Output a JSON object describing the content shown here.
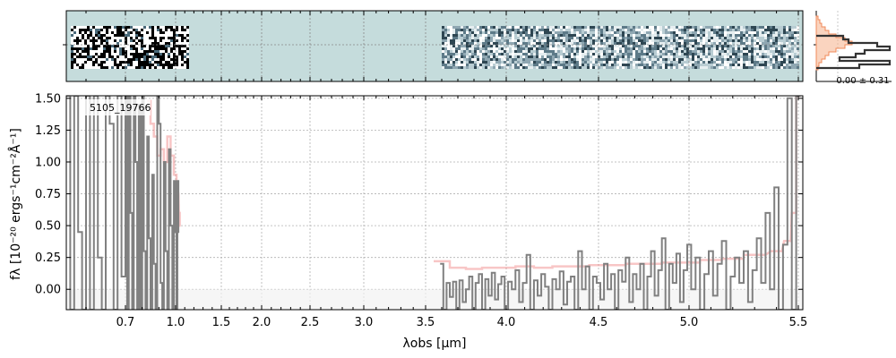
{
  "chart_data": [
    {
      "panel": "spectrum-2d",
      "type": "heatmap",
      "background_color": "#c5dcdc",
      "segments": [
        {
          "x_range": [
            0.55,
            1.05
          ],
          "style": "high-contrast-black-white"
        },
        {
          "x_range": [
            3.6,
            5.5
          ],
          "style": "low-contrast-blue-grey"
        }
      ],
      "grid": true
    },
    {
      "panel": "spectrum-1d",
      "type": "line",
      "title": "",
      "object_label": "5105_19766",
      "xlabel": "λobs [μm]",
      "ylabel": "fλ [10⁻²⁰ ergs⁻¹cm⁻²Å⁻¹]",
      "xlim": [
        0.55,
        5.52
      ],
      "ylim": [
        -0.16,
        1.52
      ],
      "x_ticks": [
        "0.7",
        "1.0",
        "1.5",
        "2.0",
        "2.5",
        "3.0",
        "3.5",
        "4.0",
        "4.5",
        "5.0",
        "5.5"
      ],
      "y_ticks": [
        "0.00",
        "0.25",
        "0.50",
        "0.75",
        "1.00",
        "1.25",
        "1.50"
      ],
      "x_tick_values": [
        0.7,
        1.0,
        1.5,
        2.0,
        2.5,
        3.0,
        3.5,
        4.0,
        4.5,
        5.0,
        5.5
      ],
      "y_tick_values": [
        0.0,
        0.25,
        0.5,
        0.75,
        1.0,
        1.25,
        1.5
      ],
      "grid": true,
      "series": [
        {
          "role": "observed-flux",
          "color": "#808080",
          "segments": [
            {
              "x": [
                0.555,
                0.565,
                0.575,
                0.585,
                0.595,
                0.605,
                0.615,
                0.625,
                0.635,
                0.645,
                0.655,
                0.665,
                0.675,
                0.685,
                0.695,
                0.705,
                0.715,
                0.725,
                0.735,
                0.745,
                0.755,
                0.765,
                0.775,
                0.785,
                0.795,
                0.805,
                0.815,
                0.825,
                0.835,
                0.845,
                0.855,
                0.865,
                0.875,
                0.885,
                0.895,
                0.905,
                0.915,
                0.925,
                0.935,
                0.945,
                0.955,
                0.965,
                0.975,
                0.985,
                0.995,
                1.005,
                1.015,
                1.025,
                1.035
              ],
              "y": [
                1.52,
                -0.16,
                1.52,
                0.45,
                -0.16,
                1.52,
                -0.16,
                1.52,
                0.25,
                -0.16,
                1.52,
                1.3,
                -0.16,
                1.52,
                0.1,
                1.52,
                -0.16,
                1.52,
                0.6,
                -0.16,
                1.52,
                1.0,
                -0.16,
                1.45,
                -0.16,
                1.52,
                0.3,
                -0.16,
                1.2,
                0.4,
                -0.16,
                0.9,
                0.2,
                -0.16,
                1.52,
                1.3,
                0.05,
                -0.16,
                1.0,
                0.3,
                -0.16,
                1.1,
                0.5,
                -0.16,
                0.85,
                0.45,
                -0.16,
                0.85,
                0.45
              ]
            },
            {
              "x": [
                3.6,
                3.62,
                3.64,
                3.66,
                3.68,
                3.7,
                3.72,
                3.74,
                3.76,
                3.78,
                3.8,
                3.82,
                3.84,
                3.86,
                3.88,
                3.9,
                3.92,
                3.94,
                3.96,
                3.98,
                4.0,
                4.02,
                4.04,
                4.06,
                4.08,
                4.1,
                4.12,
                4.14,
                4.16,
                4.18,
                4.2,
                4.22,
                4.24,
                4.26,
                4.28,
                4.3,
                4.32,
                4.34,
                4.36,
                4.38,
                4.4,
                4.42,
                4.44,
                4.46,
                4.48,
                4.5,
                4.52,
                4.54,
                4.56,
                4.58,
                4.6,
                4.62,
                4.64,
                4.66,
                4.68,
                4.7,
                4.72,
                4.74,
                4.76,
                4.78,
                4.8,
                4.82,
                4.84,
                4.86,
                4.88,
                4.9,
                4.92,
                4.94,
                4.96,
                4.98,
                5.0,
                5.02,
                5.04,
                5.06,
                5.08,
                5.1,
                5.12,
                5.14,
                5.16,
                5.18,
                5.2,
                5.22,
                5.24,
                5.26,
                5.28,
                5.3,
                5.32,
                5.34,
                5.36,
                5.38,
                5.4,
                5.42,
                5.44,
                5.46,
                5.48,
                5.5
              ],
              "y": [
                0.2,
                -0.16,
                0.05,
                -0.06,
                0.06,
                -0.16,
                0.07,
                -0.1,
                0.0,
                0.1,
                -0.16,
                0.05,
                0.12,
                -0.16,
                0.08,
                -0.05,
                0.13,
                -0.08,
                0.04,
                0.1,
                -0.16,
                0.06,
                0.0,
                0.15,
                -0.1,
                0.05,
                0.27,
                -0.16,
                0.07,
                -0.05,
                0.12,
                0.02,
                -0.16,
                0.08,
                0.0,
                0.14,
                -0.12,
                0.06,
                0.1,
                -0.16,
                0.3,
                0.0,
                0.18,
                -0.16,
                0.1,
                0.05,
                -0.08,
                0.2,
                0.0,
                0.12,
                -0.16,
                0.15,
                0.06,
                0.25,
                -0.1,
                0.12,
                0.0,
                0.2,
                -0.16,
                0.1,
                0.3,
                -0.05,
                0.15,
                0.4,
                -0.16,
                0.2,
                0.05,
                0.28,
                -0.1,
                0.15,
                0.35,
                0.0,
                0.25,
                -0.16,
                0.12,
                0.3,
                -0.05,
                0.2,
                0.38,
                -0.16,
                0.1,
                0.25,
                0.05,
                0.3,
                -0.1,
                0.15,
                0.4,
                0.05,
                0.6,
                0.0,
                0.8,
                -0.16,
                0.35,
                1.5,
                -0.16,
                1.52
              ]
            }
          ]
        },
        {
          "role": "model",
          "color": "#f08080",
          "segments": [
            {
              "x": [
                0.84,
                0.86,
                0.88,
                0.9,
                0.92,
                0.94,
                0.96,
                0.98,
                1.0,
                1.02,
                1.04,
                1.05
              ],
              "y": [
                1.48,
                1.3,
                1.2,
                1.05,
                1.1,
                1.0,
                1.2,
                1.05,
                0.9,
                0.75,
                0.6,
                0.5
              ]
            },
            {
              "x": [
                3.6,
                3.7,
                3.8,
                3.9,
                4.0,
                4.1,
                4.2,
                4.3,
                4.4,
                4.5,
                4.6,
                4.7,
                4.8,
                4.9,
                5.0,
                5.1,
                5.2,
                5.3,
                5.4,
                5.45,
                5.48,
                5.5
              ],
              "y": [
                0.22,
                0.17,
                0.16,
                0.17,
                0.17,
                0.18,
                0.17,
                0.18,
                0.18,
                0.19,
                0.19,
                0.2,
                0.2,
                0.21,
                0.21,
                0.23,
                0.24,
                0.27,
                0.3,
                0.38,
                0.6,
                1.52
              ]
            }
          ]
        }
      ]
    },
    {
      "panel": "residual-histogram",
      "type": "histogram",
      "annotation": "0.00 ± 0.31",
      "colors": {
        "filled": "#f6b08a",
        "outline": "#333333"
      }
    }
  ]
}
